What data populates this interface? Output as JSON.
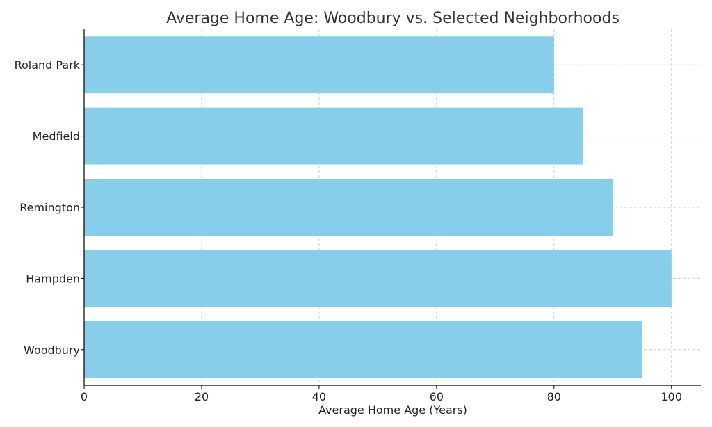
{
  "chart_data": {
    "type": "bar",
    "orientation": "horizontal",
    "title": "Average Home Age: Woodbury vs. Selected Neighborhoods",
    "xlabel": "Average Home Age (Years)",
    "ylabel": "",
    "categories": [
      "Woodbury",
      "Hampden",
      "Remington",
      "Medfield",
      "Roland Park"
    ],
    "values": [
      95,
      100,
      90,
      85,
      80
    ],
    "xlim": [
      0,
      105
    ],
    "xticks": [
      0,
      20,
      40,
      60,
      80,
      100
    ],
    "grid": true,
    "bar_color": "#87CEEB"
  }
}
